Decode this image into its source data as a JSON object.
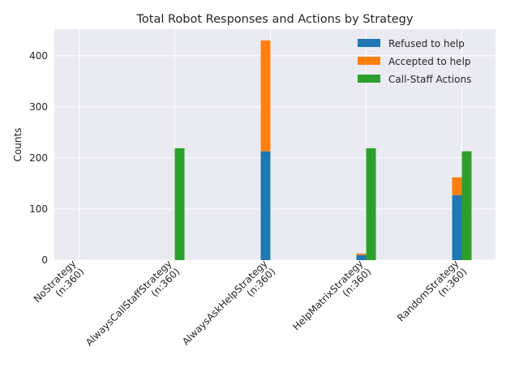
{
  "chart_data": {
    "type": "bar",
    "title": "Total Robot Responses and Actions by Strategy",
    "xlabel": "",
    "ylabel": "Counts",
    "ylim": [
      0,
      452
    ],
    "yticks": [
      0,
      100,
      200,
      300,
      400
    ],
    "grid": true,
    "legend_position": "top-right",
    "categories": [
      [
        "NoStrategy",
        "(n:360)"
      ],
      [
        "AlwaysCallStaffStrategy",
        "(n:360)"
      ],
      [
        "AlwaysAskHelpStrategy",
        "(n:360)"
      ],
      [
        "HelpMatrixStrategy",
        "(n:360)"
      ],
      [
        "RandomStrategy",
        "(n:360)"
      ]
    ],
    "series": [
      {
        "name": "Refused to help",
        "color": "#1f77b4",
        "stack": "responses",
        "values": [
          0,
          0,
          213,
          10,
          127
        ]
      },
      {
        "name": "Accepted to help",
        "color": "#ff7f0e",
        "stack": "responses",
        "values": [
          0,
          0,
          217,
          3,
          35
        ]
      },
      {
        "name": "Call-Staff Actions",
        "color": "#2ca02c",
        "stack": "actions",
        "values": [
          0,
          219,
          0,
          219,
          213
        ]
      }
    ]
  }
}
